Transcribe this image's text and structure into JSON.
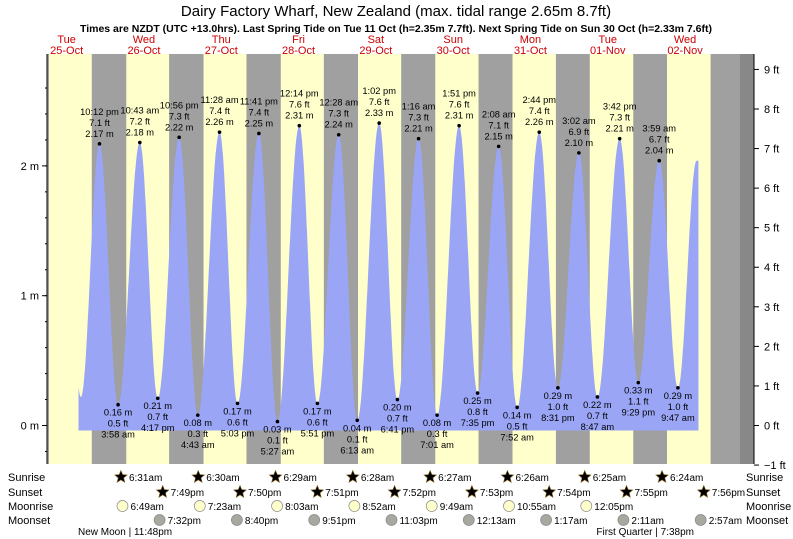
{
  "chart_data": {
    "type": "area",
    "title": "Dairy Factory Wharf, New Zealand (max. tidal range 2.65m 8.7ft)",
    "subtitle": "Times are NZDT (UTC +13.0hrs). Last Spring Tide on Tue 11 Oct (h=2.35m 7.7ft). Next Spring Tide on Sun 30 Oct (h=2.33m 7.6ft)",
    "ylim_m": [
      -0.3,
      2.9
    ],
    "y_ticks_m": [
      {
        "v": 0,
        "label": "0 m"
      },
      {
        "v": 1,
        "label": "1 m"
      },
      {
        "v": 2,
        "label": "2 m"
      }
    ],
    "y_ticks_ft": [
      {
        "v": -1,
        "label": "−1 ft"
      },
      {
        "v": 0,
        "label": "0 ft"
      },
      {
        "v": 1,
        "label": "1 ft"
      },
      {
        "v": 2,
        "label": "2 ft"
      },
      {
        "v": 3,
        "label": "3 ft"
      },
      {
        "v": 4,
        "label": "4 ft"
      },
      {
        "v": 5,
        "label": "5 ft"
      },
      {
        "v": 6,
        "label": "6 ft"
      },
      {
        "v": 7,
        "label": "7 ft"
      },
      {
        "v": 8,
        "label": "8 ft"
      },
      {
        "v": 9,
        "label": "9 ft"
      }
    ],
    "days": [
      {
        "dow": "Tue",
        "date": "25-Oct"
      },
      {
        "dow": "Wed",
        "date": "26-Oct"
      },
      {
        "dow": "Thu",
        "date": "27-Oct"
      },
      {
        "dow": "Fri",
        "date": "28-Oct"
      },
      {
        "dow": "Sat",
        "date": "29-Oct"
      },
      {
        "dow": "Sun",
        "date": "30-Oct"
      },
      {
        "dow": "Mon",
        "date": "31-Oct"
      },
      {
        "dow": "Tue",
        "date": "01-Nov"
      },
      {
        "dow": "Wed",
        "date": "02-Nov"
      }
    ],
    "day_periods": [
      {
        "day": 0,
        "sunrise": "06:32",
        "sunset": "19:48"
      },
      {
        "day": 1,
        "sunrise": "06:31",
        "sunset": "19:49"
      },
      {
        "day": 2,
        "sunrise": "06:30",
        "sunset": "19:50"
      },
      {
        "day": 3,
        "sunrise": "06:29",
        "sunset": "19:51"
      },
      {
        "day": 4,
        "sunrise": "06:28",
        "sunset": "19:52"
      },
      {
        "day": 5,
        "sunrise": "06:27",
        "sunset": "19:53"
      },
      {
        "day": 6,
        "sunrise": "06:26",
        "sunset": "19:54"
      },
      {
        "day": 7,
        "sunrise": "06:25",
        "sunset": "19:55"
      },
      {
        "day": 8,
        "sunrise": "06:24",
        "sunset": "19:56"
      }
    ],
    "tides": [
      {
        "type": "high",
        "day": 0,
        "time": "22:12",
        "label_time": "10:12 pm",
        "m": 2.17,
        "ft": 7.1,
        "m_label": "2.17 m",
        "ft_label": "7.1 ft"
      },
      {
        "type": "low",
        "day": 1,
        "time": "03:58",
        "label_time": "3:58 am",
        "m": 0.16,
        "ft": 0.5,
        "m_label": "0.16 m",
        "ft_label": "0.5 ft"
      },
      {
        "type": "high",
        "day": 1,
        "time": "10:43",
        "label_time": "10:43 am",
        "m": 2.18,
        "ft": 7.2,
        "m_label": "2.18 m",
        "ft_label": "7.2 ft"
      },
      {
        "type": "low",
        "day": 1,
        "time": "16:17",
        "label_time": "4:17 pm",
        "m": 0.21,
        "ft": 0.7,
        "m_label": "0.21 m",
        "ft_label": "0.7 ft"
      },
      {
        "type": "high",
        "day": 1,
        "time": "22:56",
        "label_time": "10:56 pm",
        "m": 2.22,
        "ft": 7.3,
        "m_label": "2.22 m",
        "ft_label": "7.3 ft"
      },
      {
        "type": "low",
        "day": 2,
        "time": "04:43",
        "label_time": "4:43 am",
        "m": 0.08,
        "ft": 0.3,
        "m_label": "0.08 m",
        "ft_label": "0.3 ft"
      },
      {
        "type": "high",
        "day": 2,
        "time": "11:28",
        "label_time": "11:28 am",
        "m": 2.26,
        "ft": 7.4,
        "m_label": "2.26 m",
        "ft_label": "7.4 ft"
      },
      {
        "type": "low",
        "day": 2,
        "time": "17:03",
        "label_time": "5:03 pm",
        "m": 0.17,
        "ft": 0.6,
        "m_label": "0.17 m",
        "ft_label": "0.6 ft"
      },
      {
        "type": "high",
        "day": 2,
        "time": "23:41",
        "label_time": "11:41 pm",
        "m": 2.25,
        "ft": 7.4,
        "m_label": "2.25 m",
        "ft_label": "7.4 ft"
      },
      {
        "type": "low",
        "day": 3,
        "time": "05:27",
        "label_time": "5:27 am",
        "m": 0.03,
        "ft": 0.1,
        "m_label": "0.03 m",
        "ft_label": "0.1 ft"
      },
      {
        "type": "high",
        "day": 3,
        "time": "12:14",
        "label_time": "12:14 pm",
        "m": 2.31,
        "ft": 7.6,
        "m_label": "2.31 m",
        "ft_label": "7.6 ft"
      },
      {
        "type": "low",
        "day": 3,
        "time": "17:51",
        "label_time": "5:51 pm",
        "m": 0.17,
        "ft": 0.6,
        "m_label": "0.17 m",
        "ft_label": "0.6 ft"
      },
      {
        "type": "high",
        "day": 4,
        "time": "00:28",
        "label_time": "12:28 am",
        "m": 2.24,
        "ft": 7.3,
        "m_label": "2.24 m",
        "ft_label": "7.3 ft"
      },
      {
        "type": "low",
        "day": 4,
        "time": "06:13",
        "label_time": "6:13 am",
        "m": 0.04,
        "ft": 0.1,
        "m_label": "0.04 m",
        "ft_label": "0.1 ft"
      },
      {
        "type": "high",
        "day": 4,
        "time": "13:02",
        "label_time": "1:02 pm",
        "m": 2.33,
        "ft": 7.6,
        "m_label": "2.33 m",
        "ft_label": "7.6 ft"
      },
      {
        "type": "low",
        "day": 4,
        "time": "18:41",
        "label_time": "6:41 pm",
        "m": 0.2,
        "ft": 0.7,
        "m_label": "0.20 m",
        "ft_label": "0.7 ft"
      },
      {
        "type": "high",
        "day": 5,
        "time": "01:16",
        "label_time": "1:16 am",
        "m": 2.21,
        "ft": 7.3,
        "m_label": "2.21 m",
        "ft_label": "7.3 ft"
      },
      {
        "type": "low",
        "day": 5,
        "time": "07:01",
        "label_time": "7:01 am",
        "m": 0.08,
        "ft": 0.3,
        "m_label": "0.08 m",
        "ft_label": "0.3 ft"
      },
      {
        "type": "high",
        "day": 5,
        "time": "13:51",
        "label_time": "1:51 pm",
        "m": 2.31,
        "ft": 7.6,
        "m_label": "2.31 m",
        "ft_label": "7.6 ft"
      },
      {
        "type": "low",
        "day": 5,
        "time": "19:35",
        "label_time": "7:35 pm",
        "m": 0.25,
        "ft": 0.8,
        "m_label": "0.25 m",
        "ft_label": "0.8 ft"
      },
      {
        "type": "high",
        "day": 6,
        "time": "02:08",
        "label_time": "2:08 am",
        "m": 2.15,
        "ft": 7.1,
        "m_label": "2.15 m",
        "ft_label": "7.1 ft"
      },
      {
        "type": "low",
        "day": 6,
        "time": "07:52",
        "label_time": "7:52 am",
        "m": 0.14,
        "ft": 0.5,
        "m_label": "0.14 m",
        "ft_label": "0.5 ft"
      },
      {
        "type": "high",
        "day": 6,
        "time": "14:44",
        "label_time": "2:44 pm",
        "m": 2.26,
        "ft": 7.4,
        "m_label": "2.26 m",
        "ft_label": "7.4 ft"
      },
      {
        "type": "low",
        "day": 6,
        "time": "20:31",
        "label_time": "8:31 pm",
        "m": 0.29,
        "ft": 1.0,
        "m_label": "0.29 m",
        "ft_label": "1.0 ft"
      },
      {
        "type": "high",
        "day": 7,
        "time": "03:02",
        "label_time": "3:02 am",
        "m": 2.1,
        "ft": 6.9,
        "m_label": "2.10 m",
        "ft_label": "6.9 ft"
      },
      {
        "type": "low",
        "day": 7,
        "time": "08:47",
        "label_time": "8:47 am",
        "m": 0.22,
        "ft": 0.7,
        "m_label": "0.22 m",
        "ft_label": "0.7 ft"
      },
      {
        "type": "high",
        "day": 7,
        "time": "15:42",
        "label_time": "3:42 pm",
        "m": 2.21,
        "ft": 7.3,
        "m_label": "2.21 m",
        "ft_label": "7.3 ft"
      },
      {
        "type": "low",
        "day": 7,
        "time": "21:29",
        "label_time": "9:29 pm",
        "m": 0.33,
        "ft": 1.1,
        "m_label": "0.33 m",
        "ft_label": "1.1 ft"
      },
      {
        "type": "high",
        "day": 8,
        "time": "03:59",
        "label_time": "3:59 am",
        "m": 2.04,
        "ft": 6.7,
        "m_label": "2.04 m",
        "ft_label": "6.7 ft"
      },
      {
        "type": "low",
        "day": 8,
        "time": "09:47",
        "label_time": "9:47 am",
        "m": 0.29,
        "ft": 1.0,
        "m_label": "0.29 m",
        "ft_label": "1.0 ft"
      }
    ],
    "sun_rows": {
      "sunrise": [
        {
          "day": 1,
          "label": "6:31am"
        },
        {
          "day": 2,
          "label": "6:30am"
        },
        {
          "day": 3,
          "label": "6:29am"
        },
        {
          "day": 4,
          "label": "6:28am"
        },
        {
          "day": 5,
          "label": "6:27am"
        },
        {
          "day": 6,
          "label": "6:26am"
        },
        {
          "day": 7,
          "label": "6:25am"
        },
        {
          "day": 8,
          "label": "6:24am"
        }
      ],
      "sunset": [
        {
          "day": 1,
          "label": "7:49pm"
        },
        {
          "day": 2,
          "label": "7:50pm"
        },
        {
          "day": 3,
          "label": "7:51pm"
        },
        {
          "day": 4,
          "label": "7:52pm"
        },
        {
          "day": 5,
          "label": "7:53pm"
        },
        {
          "day": 6,
          "label": "7:54pm"
        },
        {
          "day": 7,
          "label": "7:55pm"
        },
        {
          "day": 8,
          "label": "7:56pm"
        }
      ],
      "moonrise": [
        {
          "day": 1,
          "label": "6:49am"
        },
        {
          "day": 2,
          "label": "7:23am"
        },
        {
          "day": 3,
          "label": "8:03am"
        },
        {
          "day": 4,
          "label": "8:52am"
        },
        {
          "day": 5,
          "label": "9:49am"
        },
        {
          "day": 6,
          "label": "10:55am"
        },
        {
          "day": 7,
          "label": "12:05pm"
        }
      ],
      "moonset": [
        {
          "day": 1,
          "label": "7:32pm"
        },
        {
          "day": 2,
          "label": "8:40pm"
        },
        {
          "day": 3,
          "label": "9:51pm"
        },
        {
          "day": 4,
          "label": "11:03pm"
        },
        {
          "day": 5,
          "label": "12:13am"
        },
        {
          "day": 6,
          "label": "1:17am"
        },
        {
          "day": 7,
          "label": "2:11am"
        },
        {
          "day": 8,
          "label": "2:57am"
        }
      ]
    },
    "row_labels": [
      "Sunrise",
      "Sunset",
      "Moonrise",
      "Moonset"
    ],
    "moon_phases": [
      {
        "label": "New Moon | 11:48pm",
        "align": "left"
      },
      {
        "label": "First Quarter | 7:38pm",
        "align": "right"
      }
    ],
    "colors": {
      "day": "#ffffcc",
      "night": "#a0a0a0",
      "water": "#9aa6f5",
      "date_text": "#cc0000",
      "sun_icon": "#f0a040",
      "sunset_icon": "#e07030",
      "moonrise_icon": "#ffffcc",
      "moonset_icon": "#a8a8a0"
    }
  }
}
